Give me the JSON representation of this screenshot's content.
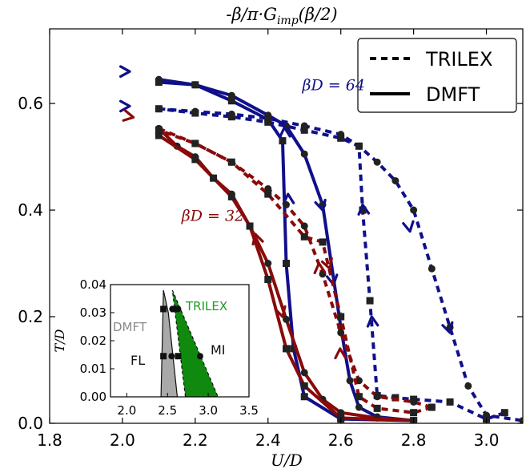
{
  "chart_data": [
    {
      "type": "line",
      "title": "-β/π·G_imp(β/2)",
      "title_parts": {
        "a": "-β/π·G",
        "sub": "imp",
        "b": "(β/2)"
      },
      "xlabel": "U/D",
      "ylabel": "",
      "xlim": [
        1.8,
        3.1
      ],
      "ylim": [
        0.0,
        0.74
      ],
      "xticks": [
        1.8,
        2.0,
        2.2,
        2.4,
        2.6,
        2.8,
        3.0
      ],
      "yticks": [
        0.0,
        0.2,
        0.4,
        0.6
      ],
      "xtick_labels": [
        "1.8",
        "2.0",
        "2.2",
        "2.4",
        "2.6",
        "2.8",
        "3.0"
      ],
      "ytick_labels": [
        "0.0",
        "0.2",
        "0.4",
        "0.6"
      ],
      "legend": {
        "position": "top-right",
        "entries": [
          {
            "label": "TRILEX",
            "style": "dashed"
          },
          {
            "label": "DMFT",
            "style": "solid"
          }
        ]
      },
      "annotations": [
        {
          "text": "βD = 64",
          "x": 2.56,
          "y": 0.625,
          "color": "#10108a"
        },
        {
          "text": "βD = 32",
          "x": 2.18,
          "y": 0.38,
          "color": "#8a0a0a"
        }
      ],
      "series": [
        {
          "group": "βD=64",
          "method": "DMFT",
          "branch": "increasing U",
          "marker": "circle",
          "color": "#10108a",
          "dash": false,
          "points": [
            [
              2.1,
              0.645
            ],
            [
              2.2,
              0.635
            ],
            [
              2.3,
              0.615
            ],
            [
              2.4,
              0.578
            ],
            [
              2.45,
              0.558
            ],
            [
              2.5,
              0.505
            ],
            [
              2.55,
              0.41
            ],
            [
              2.6,
              0.18
            ],
            [
              2.625,
              0.08
            ],
            [
              2.65,
              0.03
            ],
            [
              2.7,
              0.012
            ],
            [
              2.8,
              0.005
            ]
          ],
          "arrows": [
            [
              2.52,
              0.48,
              2.55,
              0.4
            ],
            [
              2.56,
              0.34,
              2.58,
              0.26
            ]
          ]
        },
        {
          "group": "βD=64",
          "method": "DMFT",
          "branch": "decreasing U",
          "marker": "square",
          "color": "#10108a",
          "dash": false,
          "points": [
            [
              2.8,
              0.005
            ],
            [
              2.6,
              0.008
            ],
            [
              2.5,
              0.05
            ],
            [
              2.47,
              0.14
            ],
            [
              2.45,
              0.3
            ],
            [
              2.44,
              0.53
            ],
            [
              2.4,
              0.57
            ],
            [
              2.3,
              0.605
            ],
            [
              2.2,
              0.635
            ],
            [
              2.1,
              0.64
            ]
          ],
          "arrows": [
            [
              2.46,
              0.37,
              2.455,
              0.43
            ],
            [
              2.45,
              0.5,
              2.445,
              0.555
            ]
          ]
        },
        {
          "group": "βD=64",
          "method": "TRILEX",
          "branch": "increasing U",
          "marker": "circle",
          "color": "#10108a",
          "dash": true,
          "points": [
            [
              2.1,
              0.59
            ],
            [
              2.2,
              0.585
            ],
            [
              2.3,
              0.58
            ],
            [
              2.4,
              0.572
            ],
            [
              2.5,
              0.558
            ],
            [
              2.6,
              0.542
            ],
            [
              2.65,
              0.52
            ],
            [
              2.7,
              0.49
            ],
            [
              2.75,
              0.455
            ],
            [
              2.8,
              0.4
            ],
            [
              2.85,
              0.29
            ],
            [
              2.9,
              0.18
            ],
            [
              2.95,
              0.07
            ],
            [
              3.0,
              0.015
            ],
            [
              3.1,
              0.005
            ]
          ],
          "arrows": [
            [
              2.77,
              0.43,
              2.79,
              0.36
            ],
            [
              2.87,
              0.24,
              2.9,
              0.17
            ]
          ]
        },
        {
          "group": "βD=64",
          "method": "TRILEX",
          "branch": "decreasing U",
          "marker": "square",
          "color": "#10108a",
          "dash": true,
          "points": [
            [
              3.05,
              0.02
            ],
            [
              3.0,
              0.008
            ],
            [
              2.9,
              0.04
            ],
            [
              2.8,
              0.045
            ],
            [
              2.75,
              0.048
            ],
            [
              2.7,
              0.052
            ],
            [
              2.68,
              0.23
            ],
            [
              2.66,
              0.4
            ],
            [
              2.65,
              0.52
            ],
            [
              2.6,
              0.535
            ],
            [
              2.5,
              0.55
            ],
            [
              2.4,
              0.565
            ],
            [
              2.3,
              0.575
            ],
            [
              2.2,
              0.582
            ],
            [
              2.1,
              0.59
            ]
          ],
          "arrows": [
            [
              2.69,
              0.17,
              2.685,
              0.2
            ],
            [
              2.665,
              0.38,
              2.66,
              0.41
            ]
          ]
        },
        {
          "group": "βD=32",
          "method": "DMFT",
          "branch": "increasing U",
          "marker": "circle",
          "color": "#8a0a0a",
          "dash": false,
          "points": [
            [
              2.1,
              0.553
            ],
            [
              2.15,
              0.52
            ],
            [
              2.2,
              0.5
            ],
            [
              2.25,
              0.46
            ],
            [
              2.3,
              0.43
            ],
            [
              2.35,
              0.37
            ],
            [
              2.4,
              0.3
            ],
            [
              2.45,
              0.195
            ],
            [
              2.5,
              0.095
            ],
            [
              2.55,
              0.045
            ],
            [
              2.6,
              0.02
            ],
            [
              2.7,
              0.01
            ],
            [
              2.8,
              0.005
            ]
          ],
          "arrows": [
            [
              2.42,
              0.25,
              2.44,
              0.2
            ]
          ]
        },
        {
          "group": "βD=32",
          "method": "DMFT",
          "branch": "decreasing U",
          "marker": "square",
          "color": "#8a0a0a",
          "dash": false,
          "points": [
            [
              2.8,
              0.005
            ],
            [
              2.6,
              0.01
            ],
            [
              2.5,
              0.07
            ],
            [
              2.45,
              0.14
            ],
            [
              2.4,
              0.27
            ],
            [
              2.35,
              0.37
            ],
            [
              2.3,
              0.425
            ],
            [
              2.25,
              0.46
            ],
            [
              2.2,
              0.495
            ],
            [
              2.1,
              0.54
            ]
          ],
          "arrows": [
            [
              2.38,
              0.32,
              2.365,
              0.355
            ]
          ]
        },
        {
          "group": "βD=32",
          "method": "TRILEX",
          "branch": "increasing U",
          "marker": "circle",
          "color": "#8a0a0a",
          "dash": true,
          "points": [
            [
              2.1,
              0.553
            ],
            [
              2.2,
              0.525
            ],
            [
              2.3,
              0.49
            ],
            [
              2.4,
              0.44
            ],
            [
              2.45,
              0.41
            ],
            [
              2.5,
              0.37
            ],
            [
              2.55,
              0.28
            ],
            [
              2.6,
              0.17
            ],
            [
              2.65,
              0.08
            ],
            [
              2.7,
              0.05
            ],
            [
              2.8,
              0.04
            ],
            [
              2.85,
              0.03
            ]
          ],
          "arrows": [
            [
              2.555,
              0.32,
              2.57,
              0.29
            ]
          ]
        },
        {
          "group": "βD=32",
          "method": "TRILEX",
          "branch": "decreasing U",
          "marker": "square",
          "color": "#8a0a0a",
          "dash": true,
          "points": [
            [
              2.85,
              0.03
            ],
            [
              2.8,
              0.02
            ],
            [
              2.7,
              0.028
            ],
            [
              2.65,
              0.05
            ],
            [
              2.6,
              0.2
            ],
            [
              2.55,
              0.34
            ],
            [
              2.5,
              0.35
            ],
            [
              2.4,
              0.43
            ],
            [
              2.3,
              0.49
            ],
            [
              2.2,
              0.525
            ],
            [
              2.1,
              0.55
            ]
          ],
          "arrows": [
            [
              2.6,
              0.1,
              2.598,
              0.14
            ],
            [
              2.545,
              0.26,
              2.54,
              0.3
            ]
          ]
        }
      ]
    },
    {
      "type": "line",
      "title": "",
      "xlabel": "",
      "ylabel": "T/D",
      "xlim": [
        1.8,
        3.5
      ],
      "ylim": [
        0.0,
        0.04
      ],
      "xticks": [
        2.0,
        2.5,
        3.0,
        3.5
      ],
      "yticks": [
        0.0,
        0.01,
        0.02,
        0.03,
        0.04
      ],
      "xtick_labels": [
        "2.0",
        "2.5",
        "3.0",
        "3.5"
      ],
      "ytick_labels": [
        "0.00",
        "0.01",
        "0.02",
        "0.03",
        "0.04"
      ],
      "labels": [
        {
          "text": "TRILEX",
          "color": "#1f9a1f"
        },
        {
          "text": "DMFT",
          "color": "#8a8a8a"
        },
        {
          "text": "FL",
          "color": "#111111"
        },
        {
          "text": "MI",
          "color": "#111111"
        }
      ],
      "regions": [
        {
          "name": "DMFT coexistence",
          "color": "#a9a9a9",
          "polygon": [
            [
              2.42,
              0.0
            ],
            [
              2.62,
              0.0
            ],
            [
              2.51,
              0.03
            ],
            [
              2.45,
              0.038
            ]
          ]
        },
        {
          "name": "TRILEX coexistence",
          "color": "#0f8a0f",
          "polygon": [
            [
              2.72,
              0.0
            ],
            [
              3.12,
              0.0
            ],
            [
              2.56,
              0.038
            ]
          ]
        }
      ],
      "points": [
        {
          "marker": "square",
          "x": 2.45,
          "y": 0.0313
        },
        {
          "marker": "square",
          "x": 2.45,
          "y": 0.0145
        },
        {
          "marker": "circle",
          "x": 2.56,
          "y": 0.0313
        },
        {
          "marker": "circle",
          "x": 2.55,
          "y": 0.0145
        },
        {
          "marker": "square",
          "x": 2.58,
          "y": 0.0313
        },
        {
          "marker": "square",
          "x": 2.63,
          "y": 0.0145
        },
        {
          "marker": "circle",
          "x": 2.63,
          "y": 0.0313
        },
        {
          "marker": "circle",
          "x": 2.9,
          "y": 0.0145
        }
      ]
    }
  ]
}
